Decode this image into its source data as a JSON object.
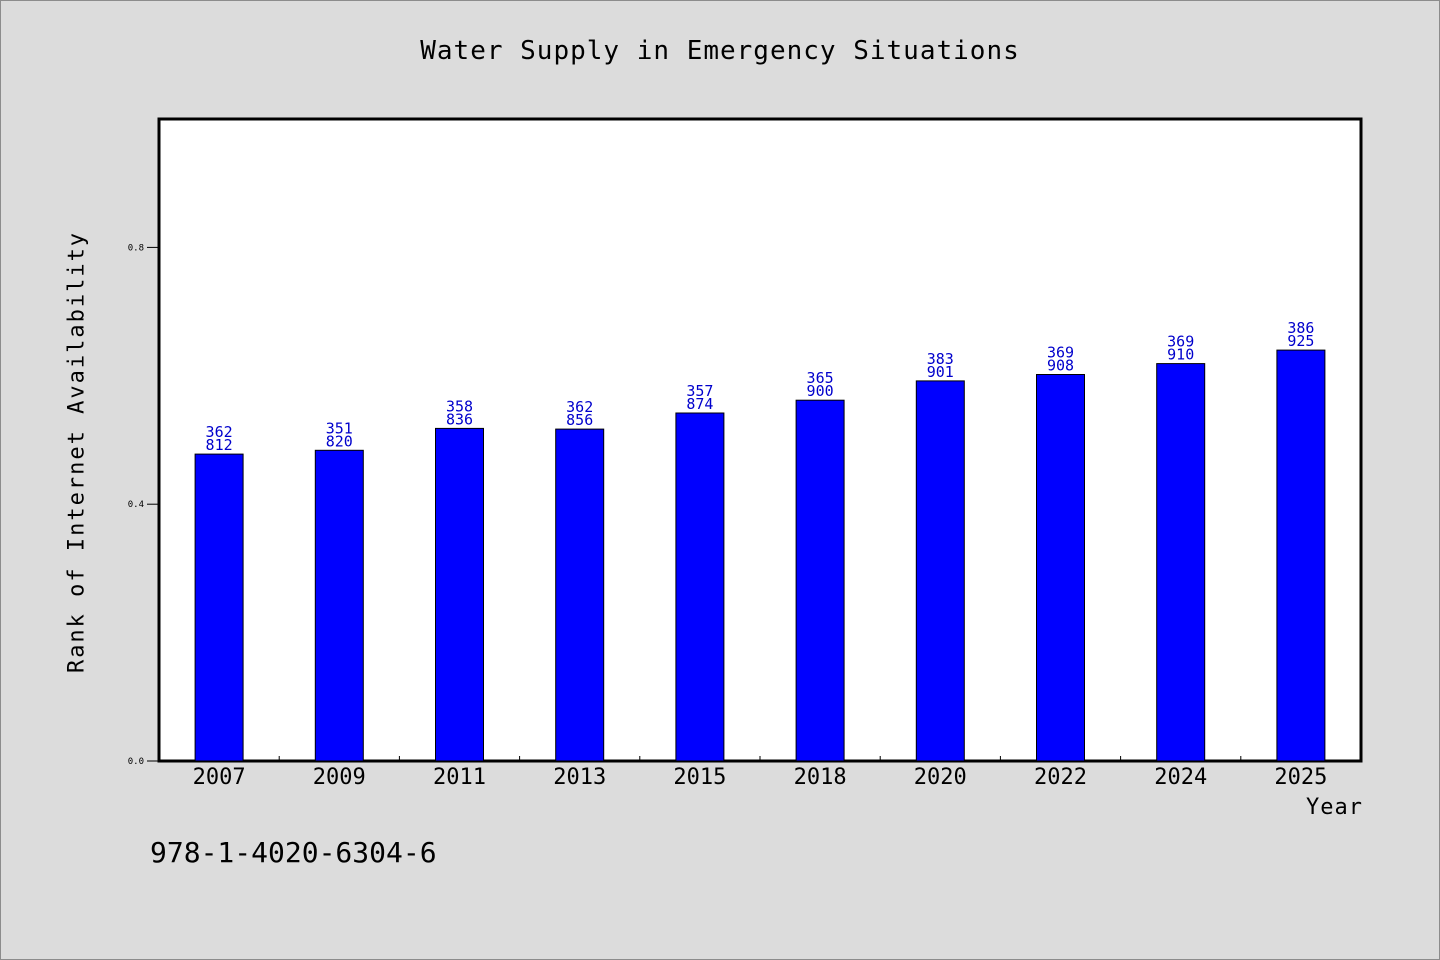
{
  "colors": {
    "background": "#dcdcdc",
    "plot_background": "#ffffff",
    "bar_fill": "#0000ff",
    "bar_label": "#0000cc",
    "text": "#000000"
  },
  "footnote": "978-1-4020-6304-6",
  "chart_data": {
    "type": "bar",
    "title": "Water Supply in Emergency Situations",
    "xlabel": "Year",
    "ylabel": "Rank of Internet Availability",
    "categories": [
      "2007",
      "2009",
      "2011",
      "2013",
      "2015",
      "2018",
      "2020",
      "2022",
      "2024",
      "2025"
    ],
    "values": [
      0.478,
      0.484,
      0.518,
      0.517,
      0.542,
      0.562,
      0.592,
      0.602,
      0.619,
      0.64
    ],
    "bar_labels": [
      [
        "362",
        "812"
      ],
      [
        "351",
        "820"
      ],
      [
        "358",
        "836"
      ],
      [
        "362",
        "856"
      ],
      [
        "357",
        "874"
      ],
      [
        "365",
        "900"
      ],
      [
        "383",
        "901"
      ],
      [
        "369",
        "908"
      ],
      [
        "369",
        "910"
      ],
      [
        "386",
        "925"
      ]
    ],
    "yticks": [
      "0.0",
      "0.4",
      "0.8"
    ],
    "ytick_values": [
      0.0,
      0.4,
      0.8
    ],
    "ylim": [
      0,
      1.0
    ],
    "grid": false,
    "legend": "none"
  }
}
